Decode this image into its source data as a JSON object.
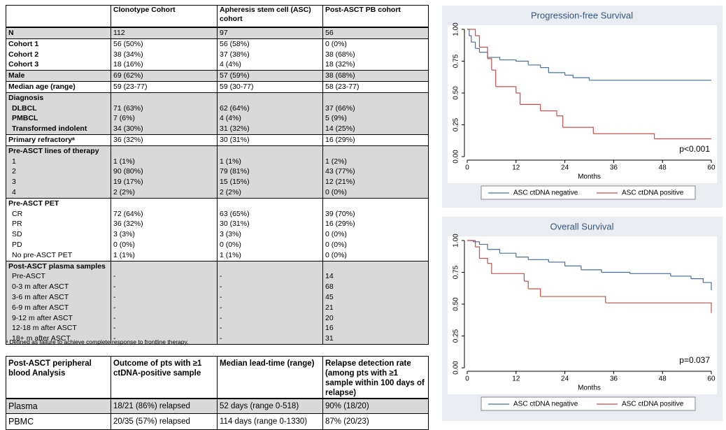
{
  "table": {
    "header": [
      "",
      "Clonotype Cohort",
      "Apheresis stem cell (ASC) cohort",
      "Post-ASCT PB cohort"
    ],
    "rows": [
      [
        "N",
        "112",
        "97",
        "56"
      ],
      [
        "Cohort 1",
        "56 (50%)",
        "56 (58%)",
        "0 (0%)"
      ],
      [
        "Cohort 2",
        "38 (34%)",
        "37 (38%)",
        "38 (68%)"
      ],
      [
        "Cohort 3",
        "18 (16%)",
        "4 (4%)",
        "18 (32%)"
      ],
      [
        "Male",
        "69 (62%)",
        "57 (59%)",
        "38 (68%)"
      ],
      [
        "Median age (range)",
        "59 (23-77)",
        "59 (30-77)",
        "58 (23-77)"
      ],
      [
        "Diagnosis",
        null,
        null,
        null
      ],
      [
        "DLBCL",
        "71 (63%)",
        "62 (64%)",
        "37 (66%)"
      ],
      [
        "PMBCL",
        "7 (6%)",
        "4 (4%)",
        "5 (9%)"
      ],
      [
        "Transformed indolent",
        "34 (30%)",
        "31 (32%)",
        "14 (25%)"
      ],
      [
        "Primary refractoryᵃ",
        "36 (32%)",
        "30 (31%)",
        "16 (29%)"
      ],
      [
        "Pre-ASCT lines of therapy",
        null,
        null,
        null
      ],
      [
        "1",
        "1 (1%)",
        "1 (1%)",
        "1 (2%)"
      ],
      [
        "2",
        "90 (80%)",
        "79 (81%)",
        "43 (77%)"
      ],
      [
        "3",
        "19 (17%)",
        "15 (15%)",
        "12 (21%)"
      ],
      [
        "4",
        "2 (2%)",
        "2 (2%)",
        "0 (0%)"
      ],
      [
        "Pre-ASCT PET",
        null,
        null,
        null
      ],
      [
        "CR",
        "72 (64%)",
        "63 (65%)",
        "39 (70%)"
      ],
      [
        "PR",
        "36 (32%)",
        "30 (31%)",
        "16 (29%)"
      ],
      [
        "SD",
        "3 (3%)",
        "3 (3%)",
        "0 (0%)"
      ],
      [
        "PD",
        "0 (0%)",
        "0 (0%)",
        "0 (0%)"
      ],
      [
        "No pre-ASCT PET",
        "1 (1%)",
        "1 (1%)",
        "0 (0%)"
      ],
      [
        "Post-ASCT plasma samples",
        null,
        null,
        null
      ],
      [
        "Pre-ASCT",
        "-",
        "-",
        "14"
      ],
      [
        "0-3 m after ASCT",
        "-",
        "-",
        "68"
      ],
      [
        "3-6 m after ASCT",
        "-",
        "-",
        "45"
      ],
      [
        "6-9 m after ASCT",
        "-",
        "-",
        "21"
      ],
      [
        "9-12 m after ASCT",
        "-",
        "-",
        "20"
      ],
      [
        "12-18 m after ASCT",
        "-",
        "-",
        "16"
      ],
      [
        "18+ m after ASCT",
        "-",
        "-",
        "31"
      ]
    ]
  },
  "footnote": "ᵃ Defined as failure to achieve complete response to frontline therapy.",
  "table2": {
    "header": [
      "Post-ASCT peripheral blood Analysis",
      "Outcome of pts with ≥1 ctDNA-positive sample",
      "Median lead-time (range)",
      "Relapse detection rate (among pts with ≥1 sample within 100 days of relapse)"
    ],
    "rows": [
      [
        "Plasma",
        "18/21 (86%) relapsed",
        "52 days (range 0-518)",
        "90% (18/20)"
      ],
      [
        "PBMC",
        "20/35 (57%) relapsed",
        "114 days (range 0-1330)",
        "87% (20/23)"
      ]
    ]
  },
  "chart_data": [
    {
      "type": "step",
      "title": "Progression-free Survival",
      "xlabel": "Months",
      "annotation": "p<0.001",
      "xlim": [
        0,
        60
      ],
      "ylim": [
        0,
        1
      ],
      "xticks": [
        0,
        12,
        24,
        36,
        48,
        60
      ],
      "yticks": [
        {
          "value": 0,
          "label": "0.00"
        },
        {
          "value": 0.25,
          "label": "0.25"
        },
        {
          "value": 0.5,
          "label": "0.50"
        },
        {
          "value": 0.75,
          "label": "0.75"
        },
        {
          "value": 1,
          "label": "1.00"
        }
      ],
      "series": [
        {
          "name": "ASC ctDNA negative",
          "color": "#4a6f96",
          "x": [
            0,
            0.5,
            1,
            2,
            3,
            5,
            8,
            12,
            15,
            18,
            20,
            24,
            26,
            30,
            60
          ],
          "values": [
            1,
            0.95,
            0.9,
            0.85,
            0.82,
            0.78,
            0.76,
            0.75,
            0.72,
            0.7,
            0.66,
            0.64,
            0.62,
            0.6,
            0.6
          ]
        },
        {
          "name": "ASC ctDNA positive",
          "color": "#c0504d",
          "x": [
            0,
            1,
            2,
            3,
            5,
            6,
            7,
            12,
            13,
            18,
            22,
            23.5,
            31,
            46,
            60
          ],
          "values": [
            1,
            1,
            0.95,
            0.86,
            0.77,
            0.68,
            0.55,
            0.5,
            0.41,
            0.36,
            0.32,
            0.23,
            0.18,
            0.14,
            0.14
          ]
        }
      ]
    },
    {
      "type": "step",
      "title": "Overall Survival",
      "xlabel": "Months",
      "annotation": "p=0.037",
      "xlim": [
        0,
        60
      ],
      "ylim": [
        0,
        1
      ],
      "xticks": [
        0,
        12,
        24,
        36,
        48,
        60
      ],
      "yticks": [
        {
          "value": 0,
          "label": "0.00"
        },
        {
          "value": 0.25,
          "label": "0.25"
        },
        {
          "value": 0.5,
          "label": "0.50"
        },
        {
          "value": 0.75,
          "label": "0.75"
        },
        {
          "value": 1,
          "label": "1.00"
        }
      ],
      "series": [
        {
          "name": "ASC ctDNA negative",
          "color": "#4a6f96",
          "x": [
            0,
            1.5,
            3,
            5,
            8,
            12,
            15,
            20,
            24,
            28,
            33,
            40,
            50,
            55,
            58,
            60
          ],
          "values": [
            1,
            0.99,
            0.97,
            0.93,
            0.9,
            0.87,
            0.85,
            0.83,
            0.8,
            0.77,
            0.75,
            0.74,
            0.72,
            0.7,
            0.67,
            0.61
          ]
        },
        {
          "name": "ASC ctDNA positive",
          "color": "#c0504d",
          "x": [
            0,
            2,
            3,
            5,
            6,
            14,
            15,
            18,
            34,
            60
          ],
          "values": [
            1,
            0.95,
            0.86,
            0.82,
            0.74,
            0.68,
            0.62,
            0.56,
            0.51,
            0.43
          ]
        }
      ]
    }
  ]
}
